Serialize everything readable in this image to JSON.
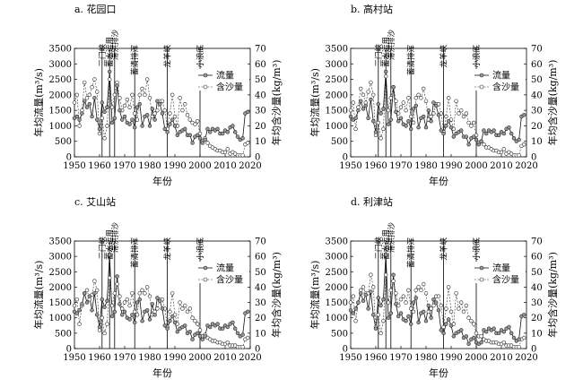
{
  "chart_data": [
    {
      "type": "line",
      "title": "a. 花园口",
      "xlabel": "年份",
      "ylabel": "年均流量(m³/s)",
      "y2label": "年均含沙量(kg/m³)",
      "xlim": [
        1950,
        2020
      ],
      "ylim": [
        0,
        3500
      ],
      "y2lim": [
        0,
        70
      ],
      "xticks": [
        1950,
        1960,
        1970,
        1980,
        1990,
        2000,
        2010,
        2020
      ],
      "yticks": [
        0,
        500,
        1000,
        1500,
        2000,
        2500,
        3000,
        3500
      ],
      "y2ticks": [
        0,
        10,
        20,
        30,
        40,
        50,
        60,
        70
      ],
      "legend": [
        "流量",
        "含沙量"
      ],
      "legend_position": "right",
      "events": [
        {
          "year": 1961,
          "label": "三门峡"
        },
        {
          "year": 1964,
          "label": "蓄水运用"
        },
        {
          "year": 1966,
          "label": "滞洪排沙"
        },
        {
          "year": 1974,
          "label": "蓄清排浑"
        },
        {
          "year": 1987,
          "label": "龙羊峡"
        },
        {
          "year": 2000,
          "label": "小浪底"
        }
      ],
      "x": [
        1950,
        1951,
        1952,
        1953,
        1954,
        1955,
        1956,
        1957,
        1958,
        1959,
        1960,
        1961,
        1962,
        1963,
        1964,
        1965,
        1966,
        1967,
        1968,
        1969,
        1970,
        1971,
        1972,
        1973,
        1974,
        1975,
        1976,
        1977,
        1978,
        1979,
        1980,
        1981,
        1982,
        1983,
        1984,
        1985,
        1986,
        1987,
        1988,
        1989,
        1990,
        1991,
        1992,
        1993,
        1994,
        1995,
        1996,
        1997,
        1998,
        1999,
        2000,
        2001,
        2002,
        2003,
        2004,
        2005,
        2006,
        2007,
        2008,
        2009,
        2010,
        2011,
        2012,
        2013,
        2014,
        2015,
        2016,
        2017,
        2018,
        2019
      ],
      "series": [
        {
          "name": "流量",
          "axis": "left",
          "values": [
            1250,
            1300,
            1200,
            1400,
            1800,
            1600,
            1700,
            1300,
            1900,
            1200,
            900,
            1750,
            1450,
            1600,
            2750,
            1100,
            1250,
            2300,
            1500,
            1200,
            1300,
            1100,
            1050,
            1200,
            950,
            1600,
            1700,
            1000,
            1300,
            1350,
            1000,
            1550,
            1200,
            1800,
            1700,
            1400,
            900,
            800,
            1050,
            1200,
            1000,
            700,
            800,
            850,
            900,
            700,
            700,
            450,
            650,
            700,
            600,
            450,
            550,
            900,
            800,
            900,
            850,
            900,
            750,
            750,
            850,
            800,
            950,
            1000,
            800,
            650,
            550,
            600,
            1400,
            1450
          ]
        },
        {
          "name": "含沙量",
          "axis": "right",
          "values": [
            35,
            40,
            20,
            30,
            48,
            38,
            40,
            45,
            50,
            42,
            15,
            25,
            12,
            20,
            50,
            32,
            40,
            48,
            38,
            30,
            33,
            37,
            32,
            40,
            28,
            24,
            40,
            44,
            40,
            50,
            38,
            26,
            28,
            30,
            36,
            36,
            30,
            18,
            28,
            40,
            26,
            20,
            38,
            30,
            34,
            27,
            24,
            22,
            21,
            23,
            15,
            10,
            12,
            9,
            7,
            6,
            5,
            4,
            4,
            3,
            3,
            5,
            2,
            3,
            2,
            1,
            1,
            1,
            8,
            9
          ]
        }
      ]
    },
    {
      "type": "line",
      "title": "b. 高村站",
      "xlabel": "年份",
      "ylabel": "年均流量(m³/s)",
      "y2label": "年均含沙量(kg/m³)",
      "xlim": [
        1950,
        2020
      ],
      "ylim": [
        0,
        3500
      ],
      "y2lim": [
        0,
        70
      ],
      "xticks": [
        1950,
        1960,
        1970,
        1980,
        1990,
        2000,
        2010,
        2020
      ],
      "yticks": [
        0,
        500,
        1000,
        1500,
        2000,
        2500,
        3000,
        3500
      ],
      "y2ticks": [
        0,
        10,
        20,
        30,
        40,
        50,
        60,
        70
      ],
      "legend": [
        "流量",
        "含沙量"
      ],
      "legend_position": "right",
      "events": [
        {
          "year": 1961,
          "label": "三门峡"
        },
        {
          "year": 1964,
          "label": "蓄水运用"
        },
        {
          "year": 1966,
          "label": "滞洪排沙"
        },
        {
          "year": 1974,
          "label": "蓄清排浑"
        },
        {
          "year": 1987,
          "label": "龙羊峡"
        },
        {
          "year": 2000,
          "label": "小浪底"
        }
      ],
      "x": [
        1950,
        1951,
        1952,
        1953,
        1954,
        1955,
        1956,
        1957,
        1958,
        1959,
        1960,
        1961,
        1962,
        1963,
        1964,
        1965,
        1966,
        1967,
        1968,
        1969,
        1970,
        1971,
        1972,
        1973,
        1974,
        1975,
        1976,
        1977,
        1978,
        1979,
        1980,
        1981,
        1982,
        1983,
        1984,
        1985,
        1986,
        1987,
        1988,
        1989,
        1990,
        1991,
        1992,
        1993,
        1994,
        1995,
        1996,
        1997,
        1998,
        1999,
        2000,
        2001,
        2002,
        2003,
        2004,
        2005,
        2006,
        2007,
        2008,
        2009,
        2010,
        2011,
        2012,
        2013,
        2014,
        2015,
        2016,
        2017,
        2018,
        2019
      ],
      "series": [
        {
          "name": "流量",
          "axis": "left",
          "values": [
            1300,
            1200,
            1250,
            1500,
            1800,
            1550,
            1650,
            1250,
            1850,
            1150,
            800,
            1700,
            1400,
            1550,
            2750,
            1050,
            1200,
            2250,
            1450,
            1150,
            1250,
            1050,
            1000,
            1150,
            900,
            1550,
            1650,
            950,
            1250,
            1300,
            950,
            1500,
            1150,
            1750,
            1650,
            1350,
            850,
            750,
            1000,
            1150,
            950,
            650,
            750,
            800,
            850,
            650,
            650,
            400,
            600,
            650,
            550,
            400,
            500,
            850,
            750,
            850,
            800,
            850,
            700,
            700,
            800,
            750,
            900,
            950,
            750,
            600,
            500,
            550,
            1300,
            1350
          ]
        },
        {
          "name": "含沙量",
          "axis": "right",
          "values": [
            30,
            35,
            18,
            32,
            44,
            40,
            35,
            42,
            48,
            40,
            14,
            22,
            12,
            18,
            52,
            30,
            38,
            45,
            36,
            28,
            32,
            35,
            30,
            38,
            26,
            22,
            38,
            40,
            38,
            44,
            36,
            24,
            26,
            28,
            34,
            34,
            28,
            16,
            26,
            38,
            24,
            18,
            36,
            28,
            30,
            26,
            28,
            22,
            20,
            22,
            14,
            9,
            10,
            8,
            6,
            6,
            5,
            4,
            4,
            3,
            3,
            5,
            2,
            3,
            2,
            1,
            1,
            1,
            7,
            8
          ]
        }
      ]
    },
    {
      "type": "line",
      "title": "c. 艾山站",
      "xlabel": "年份",
      "ylabel": "年均流量(m³/s)",
      "y2label": "年均含沙量(kg/m³)",
      "xlim": [
        1950,
        2020
      ],
      "ylim": [
        0,
        3500
      ],
      "y2lim": [
        0,
        70
      ],
      "xticks": [
        1950,
        1960,
        1970,
        1980,
        1990,
        2000,
        2010,
        2020
      ],
      "yticks": [
        0,
        500,
        1000,
        1500,
        2000,
        2500,
        3000,
        3500
      ],
      "y2ticks": [
        0,
        10,
        20,
        30,
        40,
        50,
        60,
        70
      ],
      "legend": [
        "流量",
        "含沙量"
      ],
      "legend_position": "right",
      "events": [
        {
          "year": 1961,
          "label": "三门峡"
        },
        {
          "year": 1964,
          "label": "蓄水运用"
        },
        {
          "year": 1966,
          "label": "滞洪排沙"
        },
        {
          "year": 1974,
          "label": "蓄清排浑"
        },
        {
          "year": 1987,
          "label": "龙羊峡"
        },
        {
          "year": 2000,
          "label": "小浪底"
        }
      ],
      "x": [
        1950,
        1951,
        1952,
        1953,
        1954,
        1955,
        1956,
        1957,
        1958,
        1959,
        1960,
        1961,
        1962,
        1963,
        1964,
        1965,
        1966,
        1967,
        1968,
        1969,
        1970,
        1971,
        1972,
        1973,
        1974,
        1975,
        1976,
        1977,
        1978,
        1979,
        1980,
        1981,
        1982,
        1983,
        1984,
        1985,
        1986,
        1987,
        1988,
        1989,
        1990,
        1991,
        1992,
        1993,
        1994,
        1995,
        1996,
        1997,
        1998,
        1999,
        2000,
        2001,
        2002,
        2003,
        2004,
        2005,
        2006,
        2007,
        2008,
        2009,
        2010,
        2011,
        2012,
        2013,
        2014,
        2015,
        2016,
        2017,
        2018,
        2019
      ],
      "series": [
        {
          "name": "流量",
          "axis": "left",
          "values": [
            1200,
            1150,
            1250,
            1450,
            1800,
            1500,
            1700,
            1250,
            1800,
            1100,
            700,
            1600,
            1350,
            1550,
            3050,
            1050,
            1200,
            2350,
            1450,
            1100,
            1200,
            1000,
            950,
            1100,
            850,
            1500,
            1600,
            900,
            1200,
            1250,
            950,
            1450,
            1100,
            1650,
            1550,
            1300,
            750,
            650,
            900,
            1050,
            850,
            550,
            650,
            700,
            750,
            500,
            550,
            300,
            450,
            500,
            400,
            300,
            400,
            750,
            700,
            800,
            750,
            800,
            650,
            650,
            750,
            700,
            800,
            850,
            650,
            500,
            400,
            450,
            1150,
            1200
          ]
        },
        {
          "name": "含沙量",
          "axis": "right",
          "values": [
            28,
            32,
            16,
            28,
            36,
            38,
            32,
            35,
            44,
            38,
            12,
            20,
            10,
            16,
            46,
            28,
            36,
            42,
            34,
            26,
            30,
            32,
            28,
            36,
            24,
            22,
            36,
            38,
            36,
            40,
            34,
            22,
            24,
            26,
            32,
            32,
            26,
            14,
            24,
            36,
            22,
            16,
            30,
            26,
            28,
            24,
            26,
            20,
            18,
            16,
            12,
            8,
            9,
            7,
            6,
            5,
            5,
            4,
            4,
            3,
            3,
            4,
            2,
            2,
            2,
            1,
            1,
            1,
            6,
            7
          ]
        }
      ]
    },
    {
      "type": "line",
      "title": "d. 利津站",
      "xlabel": "年份",
      "ylabel": "年均流量(m³/s)",
      "y2label": "年均含沙量(kg/m³)",
      "xlim": [
        1950,
        2020
      ],
      "ylim": [
        0,
        3500
      ],
      "y2lim": [
        0,
        70
      ],
      "xticks": [
        1950,
        1960,
        1970,
        1980,
        1990,
        2000,
        2010,
        2020
      ],
      "yticks": [
        0,
        500,
        1000,
        1500,
        2000,
        2500,
        3000,
        3500
      ],
      "y2ticks": [
        0,
        10,
        20,
        30,
        40,
        50,
        60,
        70
      ],
      "legend": [
        "流量",
        "含沙量"
      ],
      "legend_position": "right",
      "events": [
        {
          "year": 1961,
          "label": "三门峡"
        },
        {
          "year": 1964,
          "label": "蓄水运用"
        },
        {
          "year": 1966,
          "label": "滞洪排沙"
        },
        {
          "year": 1974,
          "label": "蓄清排浑"
        },
        {
          "year": 1987,
          "label": "龙羊峡"
        },
        {
          "year": 2000,
          "label": "小浪底"
        }
      ],
      "x": [
        1950,
        1951,
        1952,
        1953,
        1954,
        1955,
        1956,
        1957,
        1958,
        1959,
        1960,
        1961,
        1962,
        1963,
        1964,
        1965,
        1966,
        1967,
        1968,
        1969,
        1970,
        1971,
        1972,
        1973,
        1974,
        1975,
        1976,
        1977,
        1978,
        1979,
        1980,
        1981,
        1982,
        1983,
        1984,
        1985,
        1986,
        1987,
        1988,
        1989,
        1990,
        1991,
        1992,
        1993,
        1994,
        1995,
        1996,
        1997,
        1998,
        1999,
        2000,
        2001,
        2002,
        2003,
        2004,
        2005,
        2006,
        2007,
        2008,
        2009,
        2010,
        2011,
        2012,
        2013,
        2014,
        2015,
        2016,
        2017,
        2018,
        2019
      ],
      "series": [
        {
          "name": "流量",
          "axis": "left",
          "values": [
            1250,
            1150,
            1300,
            1500,
            1800,
            1550,
            1750,
            1300,
            1850,
            1100,
            650,
            1650,
            1400,
            1600,
            3050,
            1000,
            1150,
            2400,
            1450,
            1050,
            1150,
            950,
            900,
            1050,
            800,
            1500,
            1650,
            850,
            1150,
            1200,
            900,
            1400,
            1000,
            1600,
            1500,
            1250,
            600,
            500,
            800,
            950,
            750,
            400,
            500,
            550,
            600,
            350,
            400,
            150,
            300,
            350,
            200,
            150,
            200,
            600,
            550,
            650,
            600,
            650,
            500,
            500,
            600,
            550,
            650,
            700,
            500,
            350,
            250,
            300,
            1050,
            1100
          ]
        },
        {
          "name": "含沙量",
          "axis": "right",
          "values": [
            30,
            34,
            18,
            30,
            38,
            40,
            36,
            36,
            48,
            40,
            14,
            22,
            10,
            18,
            48,
            30,
            38,
            44,
            36,
            28,
            32,
            34,
            30,
            38,
            26,
            24,
            38,
            40,
            38,
            42,
            36,
            24,
            26,
            28,
            34,
            34,
            28,
            14,
            26,
            40,
            24,
            16,
            36,
            26,
            30,
            24,
            28,
            20,
            18,
            16,
            10,
            8,
            8,
            6,
            5,
            5,
            4,
            4,
            4,
            3,
            3,
            4,
            2,
            2,
            2,
            1,
            1,
            1,
            6,
            7
          ]
        }
      ]
    }
  ]
}
